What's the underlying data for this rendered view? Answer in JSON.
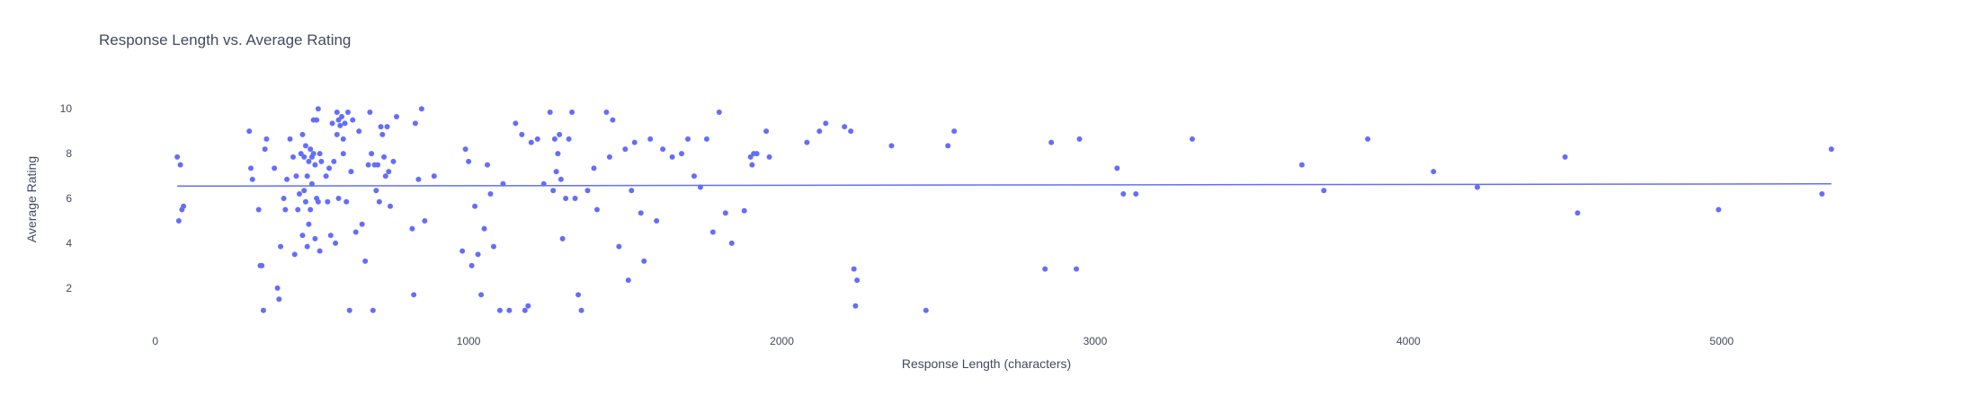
{
  "chart_data": {
    "type": "scatter",
    "title": "Response Length vs. Average Rating",
    "xlabel": "Response Length (characters)",
    "ylabel": "Average Rating",
    "xlim": [
      -180,
      5480
    ],
    "ylim": [
      0.35,
      10.85
    ],
    "xticks": [
      0,
      1000,
      2000,
      3000,
      4000,
      5000
    ],
    "yticks": [
      2,
      4,
      6,
      8,
      10
    ],
    "grid": false,
    "legend": "none",
    "colors": {
      "points": "#636efa",
      "trend": "#636efa"
    },
    "trendline": {
      "x": [
        70,
        5350
      ],
      "y": [
        6.55,
        6.65
      ]
    },
    "series": [
      {
        "x": [
          70,
          75,
          80,
          85,
          90,
          300,
          305,
          310,
          330,
          335,
          340,
          345,
          350,
          355,
          380,
          390,
          395,
          400,
          410,
          415,
          420,
          430,
          440,
          445,
          450,
          455,
          460,
          465,
          470,
          470,
          475,
          475,
          480,
          480,
          485,
          485,
          490,
          490,
          495,
          495,
          500,
          500,
          505,
          505,
          510,
          510,
          515,
          515,
          520,
          520,
          525,
          525,
          530,
          545,
          550,
          555,
          560,
          565,
          570,
          575,
          580,
          580,
          585,
          585,
          590,
          595,
          600,
          600,
          605,
          610,
          615,
          620,
          625,
          630,
          640,
          650,
          660,
          670,
          680,
          685,
          690,
          695,
          700,
          705,
          710,
          715,
          720,
          725,
          730,
          735,
          740,
          745,
          750,
          760,
          770,
          820,
          825,
          830,
          840,
          850,
          860,
          890,
          980,
          990,
          1000,
          1010,
          1020,
          1030,
          1040,
          1050,
          1060,
          1070,
          1080,
          1100,
          1110,
          1130,
          1150,
          1170,
          1180,
          1190,
          1200,
          1220,
          1240,
          1260,
          1270,
          1275,
          1280,
          1285,
          1290,
          1295,
          1300,
          1310,
          1320,
          1330,
          1340,
          1350,
          1360,
          1380,
          1400,
          1410,
          1440,
          1450,
          1460,
          1480,
          1500,
          1510,
          1520,
          1530,
          1550,
          1560,
          1580,
          1600,
          1620,
          1650,
          1680,
          1700,
          1720,
          1740,
          1760,
          1780,
          1800,
          1820,
          1840,
          1880,
          1900,
          1905,
          1910,
          1920,
          1950,
          1960,
          2080,
          2120,
          2140,
          2200,
          2220,
          2230,
          2235,
          2240,
          2350,
          2460,
          2530,
          2550,
          2840,
          2860,
          2940,
          2950,
          3070,
          3090,
          3130,
          3310,
          3660,
          3730,
          3870,
          4080,
          4220,
          4500,
          4540,
          4990,
          5320,
          5350
        ],
        "y": [
          7.85,
          5.0,
          7.5,
          5.5,
          5.65,
          9.0,
          7.35,
          6.85,
          5.5,
          3.0,
          3.0,
          1.0,
          8.2,
          8.65,
          7.35,
          2.0,
          1.5,
          3.85,
          6.0,
          5.5,
          6.85,
          8.65,
          7.85,
          3.5,
          7.0,
          5.5,
          6.2,
          8.0,
          4.35,
          8.85,
          6.35,
          7.85,
          5.85,
          8.35,
          3.85,
          7.0,
          4.85,
          7.65,
          5.5,
          8.2,
          6.65,
          7.85,
          8.0,
          9.5,
          7.5,
          4.2,
          9.5,
          6.0,
          5.85,
          10.0,
          8.0,
          3.65,
          7.65,
          7.0,
          5.85,
          7.35,
          4.35,
          9.35,
          7.65,
          4.0,
          9.85,
          8.85,
          6.0,
          9.5,
          9.25,
          9.65,
          8.65,
          8.0,
          9.35,
          5.85,
          9.85,
          1.0,
          7.2,
          9.5,
          4.5,
          9.0,
          4.85,
          3.2,
          7.5,
          9.85,
          8.0,
          1.0,
          7.5,
          6.35,
          7.5,
          5.85,
          9.2,
          8.85,
          7.85,
          7.0,
          9.2,
          7.2,
          5.65,
          7.65,
          9.65,
          4.65,
          1.7,
          9.35,
          6.85,
          10.0,
          5.0,
          7.0,
          3.65,
          8.2,
          7.65,
          3.0,
          5.65,
          3.5,
          1.7,
          4.65,
          7.5,
          6.2,
          3.85,
          1.0,
          6.65,
          1.0,
          9.35,
          8.85,
          1.0,
          1.2,
          8.5,
          8.65,
          6.65,
          9.85,
          6.35,
          8.65,
          7.2,
          8.0,
          8.85,
          6.85,
          4.2,
          6.0,
          8.65,
          9.85,
          6.0,
          1.7,
          1.0,
          6.35,
          7.35,
          5.5,
          9.85,
          7.85,
          9.5,
          3.85,
          8.2,
          2.35,
          6.35,
          8.5,
          5.35,
          3.2,
          8.65,
          5.0,
          8.2,
          7.85,
          8.0,
          8.65,
          7.0,
          6.5,
          8.65,
          4.5,
          9.85,
          5.35,
          4.0,
          5.45,
          7.85,
          7.5,
          8.0,
          8.0,
          9.0,
          7.85,
          8.5,
          9.0,
          9.35,
          9.2,
          9.0,
          2.85,
          1.2,
          2.35,
          8.35,
          1.0,
          8.35,
          9.0,
          2.85,
          8.5,
          2.85,
          8.65,
          7.35,
          6.2,
          6.2,
          8.65,
          7.5,
          6.35,
          8.65,
          7.2,
          6.5,
          7.85,
          5.35,
          5.5,
          6.2,
          8.2
        ]
      }
    ]
  }
}
